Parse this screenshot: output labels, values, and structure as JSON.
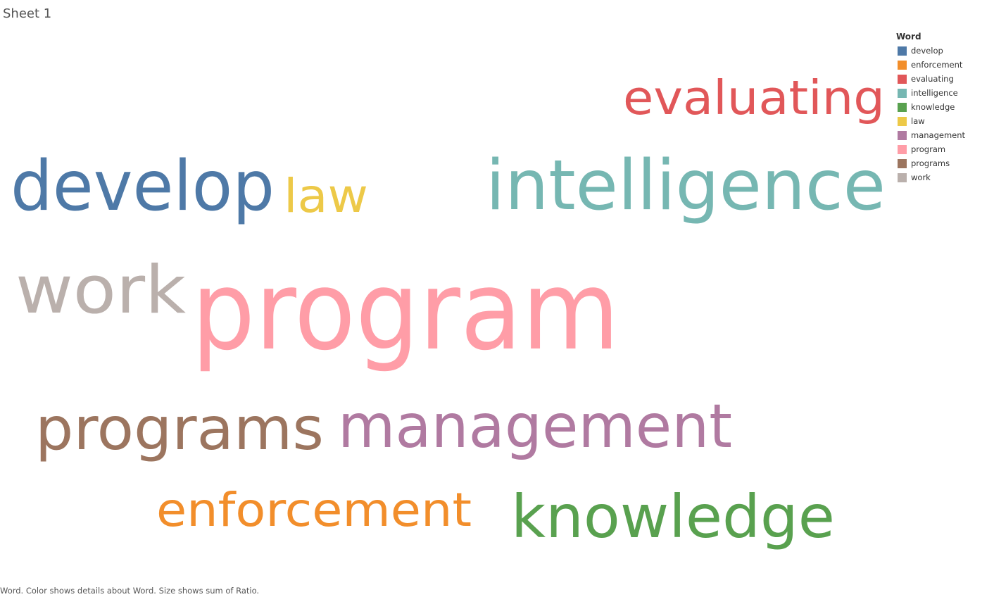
{
  "sheet": {
    "title": "Sheet 1"
  },
  "legend": {
    "title": "Word"
  },
  "caption": "Word.  Color shows details about Word.  Size shows sum of Ratio.",
  "chart_data": {
    "type": "wordcloud",
    "color_field": "Word",
    "size_field": "Ratio",
    "words": [
      {
        "text": "develop",
        "color": "#4e79a7"
      },
      {
        "text": "enforcement",
        "color": "#f28e2b"
      },
      {
        "text": "evaluating",
        "color": "#e15759"
      },
      {
        "text": "intelligence",
        "color": "#76b7b2"
      },
      {
        "text": "knowledge",
        "color": "#59a14f"
      },
      {
        "text": "law",
        "color": "#edc948"
      },
      {
        "text": "management",
        "color": "#b07aa1"
      },
      {
        "text": "program",
        "color": "#ff9da7"
      },
      {
        "text": "programs",
        "color": "#9c755f"
      },
      {
        "text": "work",
        "color": "#bab0ac"
      }
    ]
  }
}
